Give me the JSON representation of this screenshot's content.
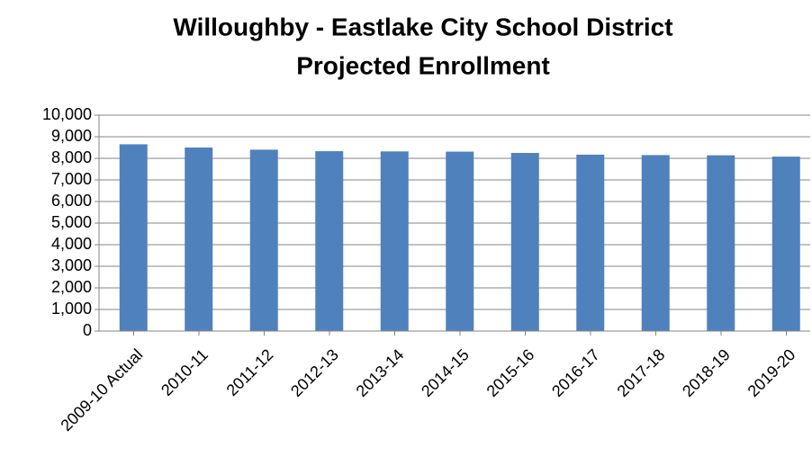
{
  "chart_data": {
    "type": "bar",
    "title": "Willoughby - Eastlake City School District",
    "subtitle": "Projected Enrollment",
    "categories": [
      "2009-10 Actual",
      "2010-11",
      "2011-12",
      "2012-13",
      "2013-14",
      "2014-15",
      "2015-16",
      "2016-17",
      "2017-18",
      "2018-19",
      "2019-20"
    ],
    "values": [
      8650,
      8500,
      8400,
      8330,
      8320,
      8310,
      8250,
      8170,
      8150,
      8140,
      8080
    ],
    "color": "#4f81bd",
    "ylim": [
      0,
      10000
    ],
    "yticks": [
      0,
      {
        "value": 1000,
        "label": "1,000"
      },
      {
        "value": 2000,
        "label": "2,000"
      },
      {
        "value": 3000,
        "label": "3,000"
      },
      {
        "value": 4000,
        "label": "4,000"
      },
      {
        "value": 5000,
        "label": "5,000"
      },
      {
        "value": 6000,
        "label": "6,000"
      },
      {
        "value": 7000,
        "label": "7,000"
      },
      {
        "value": 8000,
        "label": "8,000"
      },
      {
        "value": 9000,
        "label": "9,000"
      },
      {
        "value": 10000,
        "label": "10,000"
      }
    ],
    "grid": true
  }
}
